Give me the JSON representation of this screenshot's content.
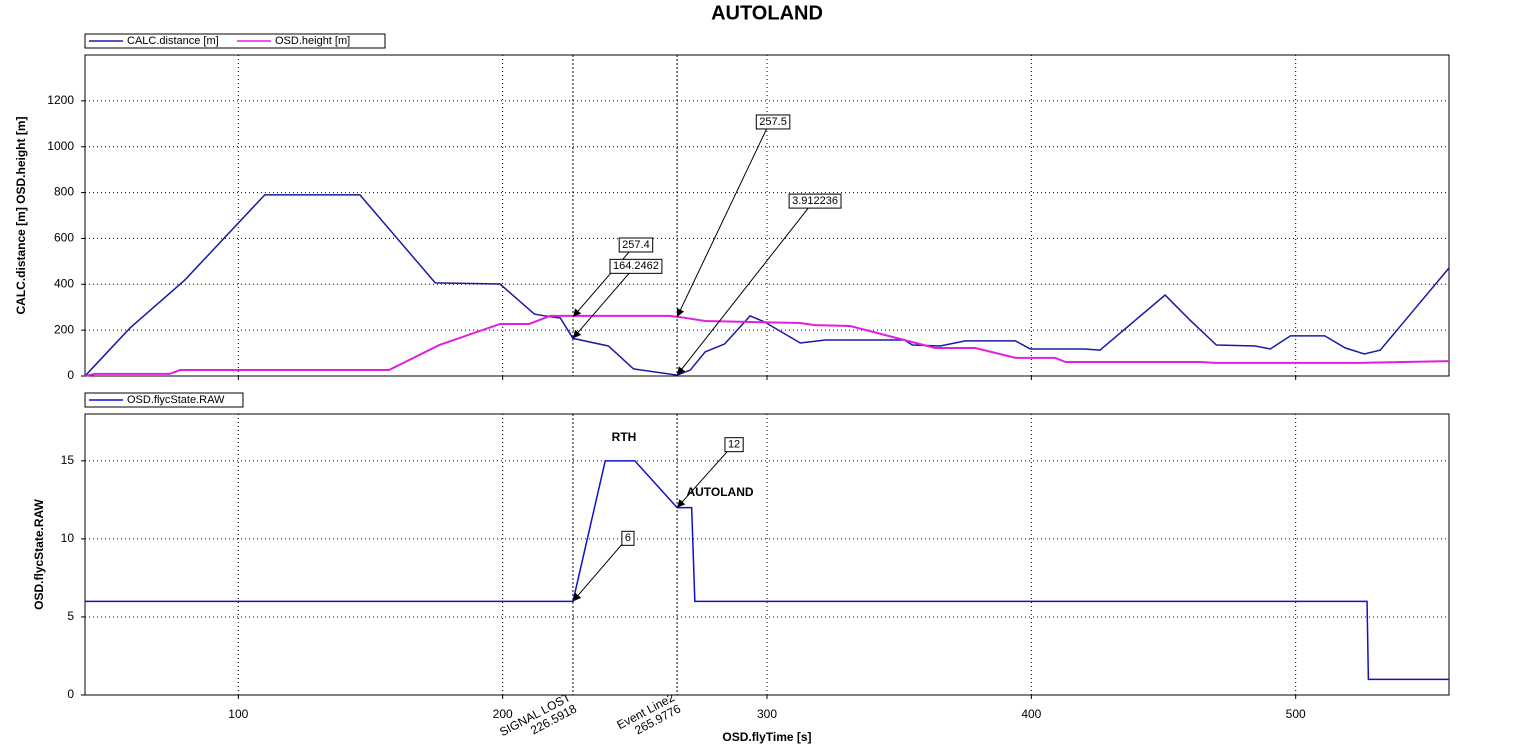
{
  "chart_data": [
    {
      "type": "line",
      "title": "AUTOLAND",
      "ylabel": "CALC.distance [m] OSD.height [m]",
      "xlim": [
        42,
        558
      ],
      "xticks": [
        100,
        200,
        300,
        400,
        500
      ],
      "ylim": [
        0,
        1400
      ],
      "yticks": [
        0,
        200,
        400,
        600,
        800,
        1000,
        1200
      ],
      "grid": true,
      "legend": "top-left",
      "series": [
        {
          "name": "CALC.distance [m]",
          "color": "#1a1aa6",
          "x": [
            42,
            47.7,
            59,
            79.8,
            110,
            140,
            146,
            174.5,
            199,
            212,
            216,
            221.8,
            226.6,
            240,
            249.5,
            266,
            271,
            276.6,
            284,
            293.6,
            299,
            312.6,
            322,
            352,
            355,
            365.5,
            375,
            394,
            399.6,
            420,
            426,
            450.6,
            460,
            470,
            484.7,
            490.4,
            498,
            511,
            518.8,
            526,
            532,
            558
          ],
          "values": [
            0,
            70,
            209,
            419,
            790,
            790,
            790,
            406,
            401,
            270,
            262,
            253,
            164,
            131,
            31,
            4,
            26,
            105,
            140,
            262,
            236,
            144,
            157,
            157,
            135,
            131,
            153,
            153,
            118,
            118,
            113,
            353,
            244,
            135,
            131,
            118,
            175,
            175,
            122,
            96,
            113,
            471
          ]
        },
        {
          "name": "OSD.height [m]",
          "color": "#e020e0",
          "x": [
            42,
            45.8,
            74,
            78,
            157,
            176,
            199,
            210,
            218,
            263,
            267,
            276.6,
            312.6,
            318,
            331.5,
            363.6,
            378.8,
            394,
            409,
            413,
            464,
            469.6,
            524.5,
            558
          ],
          "values": [
            0,
            9,
            9,
            26,
            26,
            135,
            227,
            227,
            262,
            262,
            257,
            240,
            231,
            222,
            218,
            122,
            122,
            79,
            79,
            61,
            61,
            57,
            57,
            65
          ]
        }
      ],
      "event_lines": [
        {
          "x": 226.5918,
          "label": "SIGNAL LOST"
        },
        {
          "x": 265.9776,
          "label": "Event Line2"
        }
      ],
      "annotations": [
        {
          "x": 226.5918,
          "y": 257.4
        },
        {
          "x": 226.5918,
          "y": 164.2462
        },
        {
          "x": 265.9776,
          "y": 257.5
        },
        {
          "x": 265.9776,
          "y": 3.912236
        }
      ]
    },
    {
      "type": "line",
      "ylabel": "OSD.flycState.RAW",
      "xlabel": "OSD.flyTime [s]",
      "xlim": [
        42,
        558
      ],
      "xticks": [
        100,
        200,
        300,
        400,
        500
      ],
      "ylim": [
        0,
        18
      ],
      "yticks": [
        0,
        5,
        10,
        15
      ],
      "grid": true,
      "legend": "top-left",
      "series": [
        {
          "name": "OSD.flycState.RAW",
          "color": "#1010d0",
          "x": [
            42,
            226.6,
            238.8,
            250,
            266,
            271.5,
            272.7,
            527,
            527.5,
            558
          ],
          "values": [
            6,
            6,
            15,
            15,
            12,
            12,
            6,
            6,
            1,
            1
          ]
        }
      ],
      "event_lines": [
        {
          "x": 226.5918
        },
        {
          "x": 265.9776
        }
      ],
      "annotations": [
        {
          "x": 226.5918,
          "y": 6
        },
        {
          "x": 265.9776,
          "y": 12
        }
      ],
      "text_annotations": [
        "RTH",
        "AUTOLAND"
      ]
    }
  ]
}
